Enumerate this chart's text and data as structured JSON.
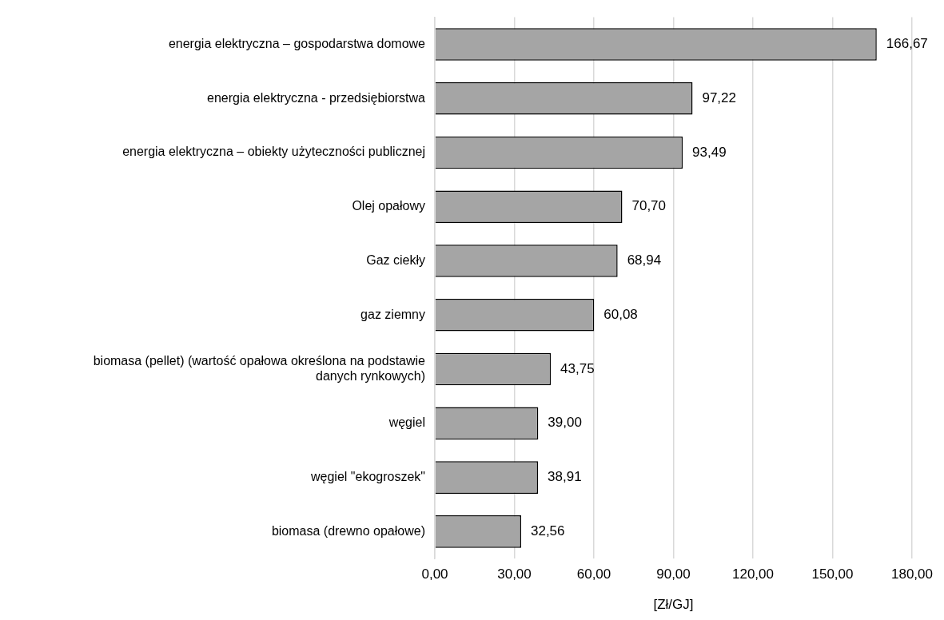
{
  "chart_data": {
    "type": "bar",
    "orientation": "horizontal",
    "xlabel": "[Zł/GJ]",
    "categories": [
      "energia elektryczna – gospodarstwa domowe",
      "energia elektryczna - przedsiębiorstwa",
      "energia elektryczna – obiekty użyteczności publicznej",
      "Olej opałowy",
      "Gaz ciekły",
      "gaz ziemny",
      "biomasa (pellet) (wartość opałowa określona na podstawie danych rynkowych)",
      "węgiel",
      "węgiel \"ekogroszek\"",
      "biomasa (drewno opałowe)"
    ],
    "values": [
      166.67,
      97.22,
      93.49,
      70.7,
      68.94,
      60.08,
      43.75,
      39.0,
      38.91,
      32.56
    ],
    "value_labels": [
      "166,67",
      "97,22",
      "93,49",
      "70,70",
      "68,94",
      "60,08",
      "43,75",
      "39,00",
      "38,91",
      "32,56"
    ],
    "color": "#a5a5a5",
    "xlim": [
      0,
      180
    ],
    "xticks": [
      {
        "value": 0,
        "label": "0,00"
      },
      {
        "value": 30,
        "label": "30,00"
      },
      {
        "value": 60,
        "label": "60,00"
      },
      {
        "value": 90,
        "label": "90,00"
      },
      {
        "value": 120,
        "label": "120,00"
      },
      {
        "value": 150,
        "label": "150,00"
      },
      {
        "value": 180,
        "label": "180,00"
      }
    ],
    "grid": "x",
    "legend": false
  }
}
